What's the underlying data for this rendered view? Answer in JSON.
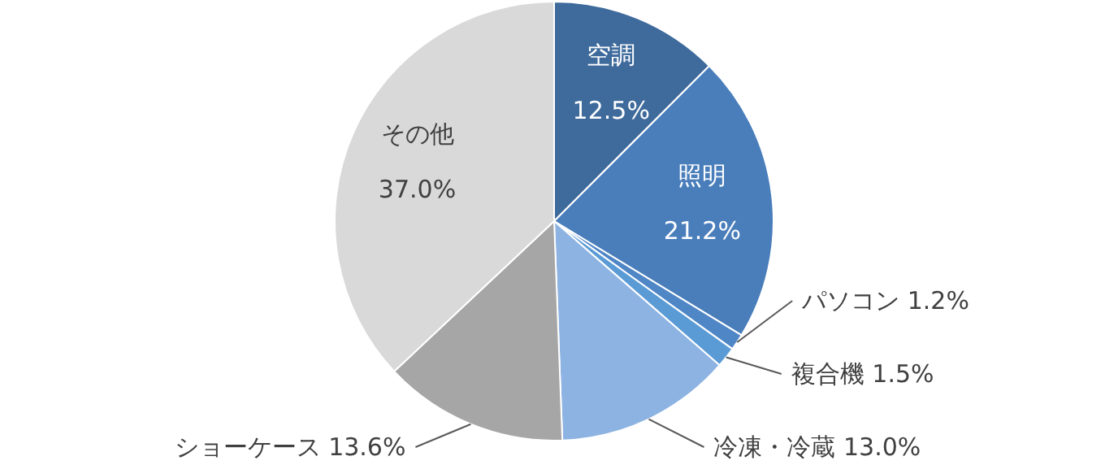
{
  "chart_data": {
    "type": "pie",
    "categories": [
      "空調",
      "照明",
      "パソコン",
      "複合機",
      "冷凍・冷蔵",
      "ショーケース",
      "その他"
    ],
    "values": [
      12.5,
      21.2,
      1.2,
      1.5,
      13.0,
      13.6,
      37.0
    ],
    "value_labels": [
      "12.5%",
      "21.2%",
      "1.2%",
      "1.5%",
      "13.0%",
      "13.6%",
      "37.0%"
    ],
    "colors": [
      "#3e6a9c",
      "#4a7ebb",
      "#4f86c6",
      "#5b9bd5",
      "#8db3e2",
      "#a6a6a6",
      "#d9d9d9"
    ]
  }
}
